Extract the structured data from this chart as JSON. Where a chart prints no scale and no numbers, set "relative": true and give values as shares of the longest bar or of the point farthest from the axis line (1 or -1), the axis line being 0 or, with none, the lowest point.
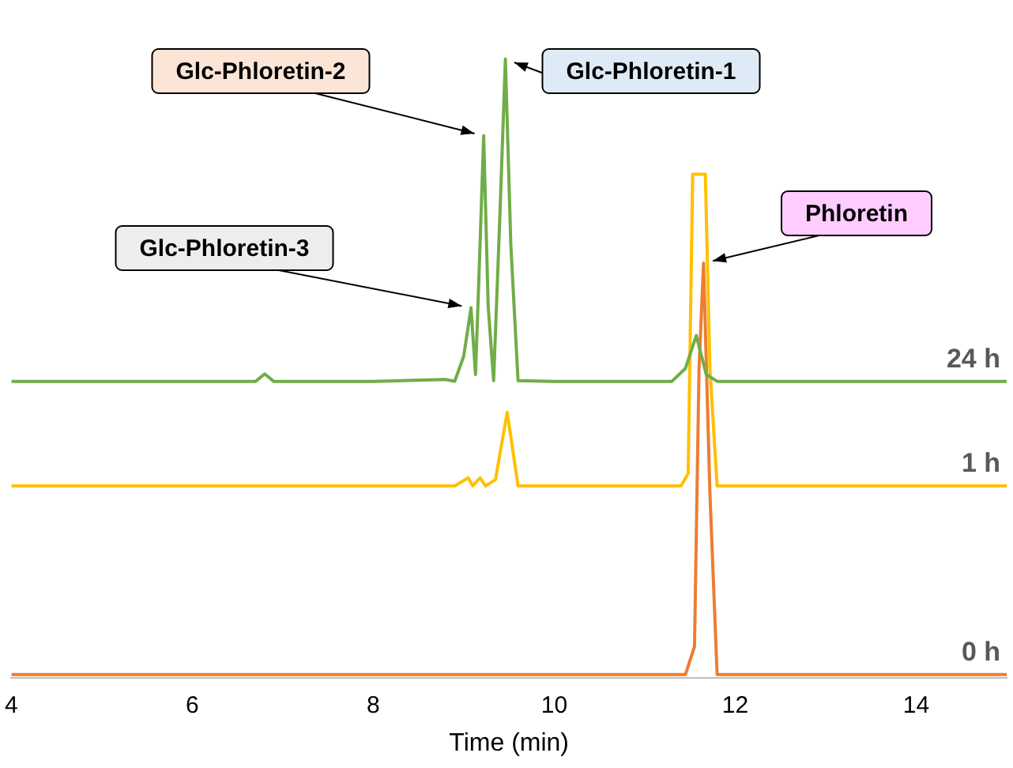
{
  "chart_data": {
    "type": "line",
    "relative": true,
    "xlabel": "Time (min)",
    "xlim": [
      4,
      15
    ],
    "xticks": [
      4,
      6,
      8,
      10,
      12,
      14
    ],
    "grid": false,
    "legend": false,
    "marker": "none",
    "line_style": "solid",
    "series": [
      {
        "name": "24 h",
        "color": "#70ad47",
        "x": [
          4,
          5,
          6,
          6.7,
          6.8,
          6.9,
          8,
          8.8,
          8.9,
          9.0,
          9.08,
          9.13,
          9.18,
          9.22,
          9.27,
          9.33,
          9.4,
          9.46,
          9.52,
          9.6,
          10,
          11.3,
          11.45,
          11.57,
          11.68,
          11.8,
          13,
          15
        ],
        "values": [
          0.479,
          0.479,
          0.479,
          0.479,
          0.491,
          0.479,
          0.479,
          0.482,
          0.479,
          0.52,
          0.598,
          0.49,
          0.7,
          0.876,
          0.6,
          0.48,
          0.75,
          1.0,
          0.7,
          0.48,
          0.479,
          0.479,
          0.5,
          0.553,
          0.49,
          0.479,
          0.479,
          0.479
        ]
      },
      {
        "name": "1 h",
        "color": "#ffc000",
        "x": [
          4,
          8.9,
          9.05,
          9.1,
          9.18,
          9.24,
          9.35,
          9.48,
          9.6,
          11.4,
          11.48,
          11.53,
          11.6,
          11.67,
          11.72,
          11.8,
          15
        ],
        "values": [
          0.31,
          0.31,
          0.323,
          0.31,
          0.323,
          0.31,
          0.32,
          0.429,
          0.31,
          0.31,
          0.33,
          0.814,
          0.814,
          0.814,
          0.5,
          0.31,
          0.31
        ]
      },
      {
        "name": "0 h",
        "color": "#ed7d31",
        "x": [
          4,
          9.4,
          9.55,
          11.45,
          11.55,
          11.6,
          11.65,
          11.72,
          11.8,
          15
        ],
        "values": [
          0.005,
          0.005,
          0.005,
          0.005,
          0.05,
          0.5,
          0.67,
          0.3,
          0.005,
          0.005
        ]
      }
    ],
    "annotations": [
      {
        "text": "Glc-Phloretin-2",
        "x": 9.22,
        "y": 0.876
      },
      {
        "text": "Glc-Phloretin-1",
        "x": 9.46,
        "y": 1.0
      },
      {
        "text": "Glc-Phloretin-3",
        "x": 9.08,
        "y": 0.598
      },
      {
        "text": "Phloretin",
        "x": 11.65,
        "y": 0.67
      }
    ]
  }
}
